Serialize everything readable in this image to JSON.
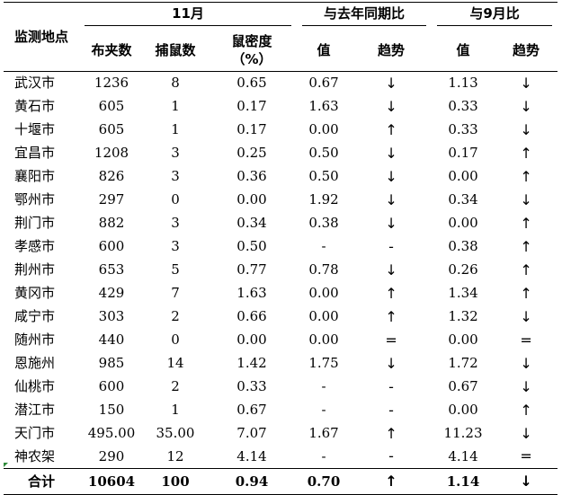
{
  "header": {
    "location": "监测地点",
    "month_group": "11月",
    "yoy_group": "与去年同期比",
    "mom_group": "与9月比",
    "traps": "布夹数",
    "caught": "捕鼠数",
    "density_line1": "鼠密度",
    "density_line2": "（%）",
    "value": "值",
    "trend": "趋势"
  },
  "rows": [
    {
      "city": "武汉市",
      "traps": "1236",
      "caught": "8",
      "density": "0.65",
      "yoy_value": "0.67",
      "yoy_trend": "↓",
      "mom_value": "1.13",
      "mom_trend": "↓"
    },
    {
      "city": "黄石市",
      "traps": "605",
      "caught": "1",
      "density": "0.17",
      "yoy_value": "1.63",
      "yoy_trend": "↓",
      "mom_value": "0.33",
      "mom_trend": "↓"
    },
    {
      "city": "十堰市",
      "traps": "605",
      "caught": "1",
      "density": "0.17",
      "yoy_value": "0.00",
      "yoy_trend": "↑",
      "mom_value": "0.33",
      "mom_trend": "↓"
    },
    {
      "city": "宜昌市",
      "traps": "1208",
      "caught": "3",
      "density": "0.25",
      "yoy_value": "0.50",
      "yoy_trend": "↓",
      "mom_value": "0.17",
      "mom_trend": "↑"
    },
    {
      "city": "襄阳市",
      "traps": "826",
      "caught": "3",
      "density": "0.36",
      "yoy_value": "0.50",
      "yoy_trend": "↓",
      "mom_value": "0.00",
      "mom_trend": "↑"
    },
    {
      "city": "鄂州市",
      "traps": "297",
      "caught": "0",
      "density": "0.00",
      "yoy_value": "1.92",
      "yoy_trend": "↓",
      "mom_value": "0.34",
      "mom_trend": "↓"
    },
    {
      "city": "荆门市",
      "traps": "882",
      "caught": "3",
      "density": "0.34",
      "yoy_value": "0.38",
      "yoy_trend": "↓",
      "mom_value": "0.00",
      "mom_trend": "↑"
    },
    {
      "city": "孝感市",
      "traps": "600",
      "caught": "3",
      "density": "0.50",
      "yoy_value": "-",
      "yoy_trend": "-",
      "mom_value": "0.38",
      "mom_trend": "↑"
    },
    {
      "city": "荆州市",
      "traps": "653",
      "caught": "5",
      "density": "0.77",
      "yoy_value": "0.78",
      "yoy_trend": "↓",
      "mom_value": "0.26",
      "mom_trend": "↑"
    },
    {
      "city": "黄冈市",
      "traps": "429",
      "caught": "7",
      "density": "1.63",
      "yoy_value": "0.00",
      "yoy_trend": "↑",
      "mom_value": "1.34",
      "mom_trend": "↑"
    },
    {
      "city": "咸宁市",
      "traps": "303",
      "caught": "2",
      "density": "0.66",
      "yoy_value": "0.00",
      "yoy_trend": "↑",
      "mom_value": "1.32",
      "mom_trend": "↓"
    },
    {
      "city": "随州市",
      "traps": "440",
      "caught": "0",
      "density": "0.00",
      "yoy_value": "0.00",
      "yoy_trend": "=",
      "mom_value": "0.00",
      "mom_trend": "="
    },
    {
      "city": "恩施州",
      "traps": "985",
      "caught": "14",
      "density": "1.42",
      "yoy_value": "1.75",
      "yoy_trend": "↓",
      "mom_value": "1.72",
      "mom_trend": "↓"
    },
    {
      "city": "仙桃市",
      "traps": "600",
      "caught": "2",
      "density": "0.33",
      "yoy_value": "-",
      "yoy_trend": "-",
      "mom_value": "0.67",
      "mom_trend": "↓"
    },
    {
      "city": "潜江市",
      "traps": "150",
      "caught": "1",
      "density": "0.67",
      "yoy_value": "-",
      "yoy_trend": "-",
      "mom_value": "0.00",
      "mom_trend": "↑"
    },
    {
      "city": "天门市",
      "traps": "495.00",
      "caught": "35.00",
      "density": "7.07",
      "yoy_value": "1.67",
      "yoy_trend": "↑",
      "mom_value": "11.23",
      "mom_trend": "↓"
    },
    {
      "city": "神农架",
      "traps": "290",
      "caught": "12",
      "density": "4.14",
      "yoy_value": "-",
      "yoy_trend": "-",
      "mom_value": "4.14",
      "mom_trend": "="
    }
  ],
  "total": {
    "city": "合计",
    "traps": "10604",
    "caught": "100",
    "density": "0.94",
    "yoy_value": "0.70",
    "yoy_trend": "↑",
    "mom_value": "1.14",
    "mom_trend": "↓"
  },
  "colors": {
    "corner_marker": "#2e8b3a"
  }
}
